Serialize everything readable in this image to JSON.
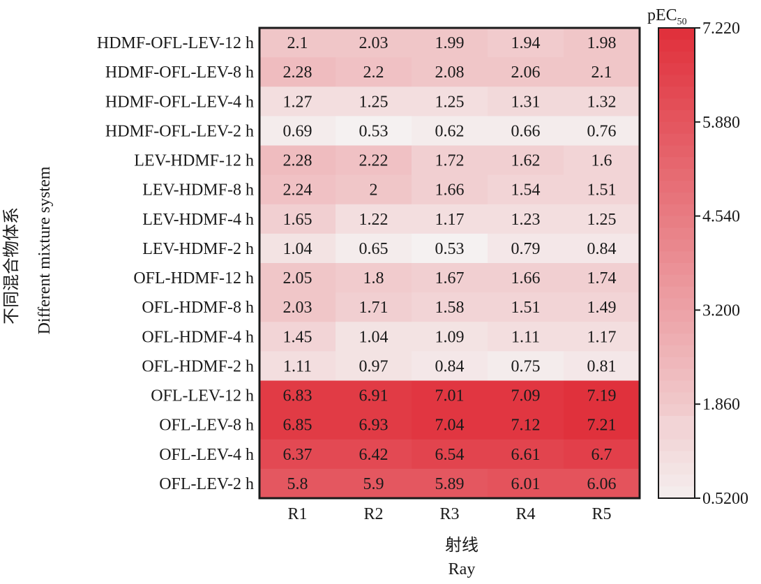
{
  "chart_data": {
    "type": "heatmap",
    "rows": [
      "HDMF-OFL-LEV-12 h",
      "HDMF-OFL-LEV-8 h",
      "HDMF-OFL-LEV-4 h",
      "HDMF-OFL-LEV-2 h",
      "LEV-HDMF-12 h",
      "LEV-HDMF-8 h",
      "LEV-HDMF-4 h",
      "LEV-HDMF-2 h",
      "OFL-HDMF-12 h",
      "OFL-HDMF-8 h",
      "OFL-HDMF-4 h",
      "OFL-HDMF-2 h",
      "OFL-LEV-12 h",
      "OFL-LEV-8 h",
      "OFL-LEV-4 h",
      "OFL-LEV-2 h"
    ],
    "columns": [
      "R1",
      "R2",
      "R3",
      "R4",
      "R5"
    ],
    "values": [
      [
        "2.1",
        "2.03",
        "1.99",
        "1.94",
        "1.98"
      ],
      [
        "2.28",
        "2.2",
        "2.08",
        "2.06",
        "2.1"
      ],
      [
        "1.27",
        "1.25",
        "1.25",
        "1.31",
        "1.32"
      ],
      [
        "0.69",
        "0.53",
        "0.62",
        "0.66",
        "0.76"
      ],
      [
        "2.28",
        "2.22",
        "1.72",
        "1.62",
        "1.6"
      ],
      [
        "2.24",
        "2",
        "1.66",
        "1.54",
        "1.51"
      ],
      [
        "1.65",
        "1.22",
        "1.17",
        "1.23",
        "1.25"
      ],
      [
        "1.04",
        "0.65",
        "0.53",
        "0.79",
        "0.84"
      ],
      [
        "2.05",
        "1.8",
        "1.67",
        "1.66",
        "1.74"
      ],
      [
        "2.03",
        "1.71",
        "1.58",
        "1.51",
        "1.49"
      ],
      [
        "1.45",
        "1.04",
        "1.09",
        "1.11",
        "1.17"
      ],
      [
        "1.11",
        "0.97",
        "0.84",
        "0.75",
        "0.81"
      ],
      [
        "6.83",
        "6.91",
        "7.01",
        "7.09",
        "7.19"
      ],
      [
        "6.85",
        "6.93",
        "7.04",
        "7.12",
        "7.21"
      ],
      [
        "6.37",
        "6.42",
        "6.54",
        "6.61",
        "6.7"
      ],
      [
        "5.8",
        "5.9",
        "5.89",
        "6.01",
        "6.06"
      ]
    ],
    "xlabel": [
      "射线",
      "Ray"
    ],
    "ylabel": [
      "不同混合物体系",
      "Different mixture system"
    ],
    "colorbar": {
      "title_main": "pEC",
      "title_sub": "50",
      "min": 0.52,
      "max": 7.22,
      "tick_values": [
        7.22,
        5.88,
        4.54,
        3.2,
        1.86,
        0.52
      ],
      "ticks": [
        "7.220",
        "5.880",
        "4.540",
        "3.200",
        "1.860",
        "0.5200"
      ],
      "color_low": "#f5f1f1",
      "color_high": "#e0313c"
    }
  }
}
